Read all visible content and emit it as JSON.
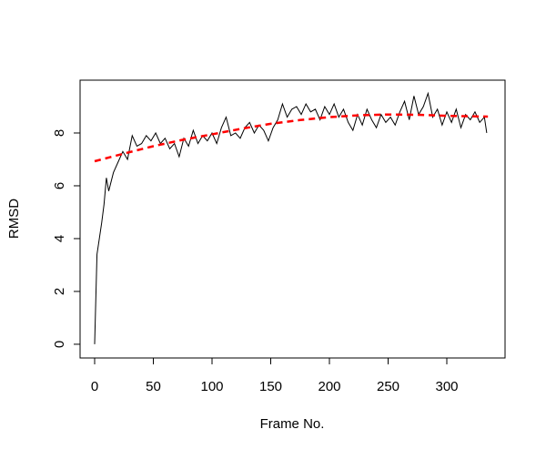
{
  "chart_data": {
    "type": "line",
    "xlabel": "Frame No.",
    "ylabel": "RMSD",
    "xlim": [
      -12.4,
      349.6
    ],
    "ylim": [
      -0.52,
      10.0
    ],
    "xticks": [
      0,
      50,
      100,
      150,
      200,
      250,
      300
    ],
    "yticks": [
      0,
      2,
      4,
      6,
      8
    ],
    "series": [
      {
        "color": "#000000",
        "dashed": false,
        "x": [
          0,
          2,
          4,
          6,
          8,
          10,
          12,
          16,
          20,
          24,
          28,
          32,
          36,
          40,
          44,
          48,
          52,
          56,
          60,
          64,
          68,
          72,
          76,
          80,
          84,
          88,
          92,
          96,
          100,
          104,
          108,
          112,
          116,
          120,
          124,
          128,
          132,
          136,
          140,
          144,
          148,
          152,
          156,
          160,
          164,
          168,
          172,
          176,
          180,
          184,
          188,
          192,
          196,
          200,
          204,
          208,
          212,
          216,
          220,
          224,
          228,
          232,
          236,
          240,
          244,
          248,
          252,
          256,
          260,
          264,
          268,
          272,
          276,
          280,
          284,
          288,
          292,
          296,
          300,
          304,
          308,
          312,
          316,
          320,
          324,
          328,
          332,
          334
        ],
        "values": [
          0,
          3.4,
          4.0,
          4.6,
          5.3,
          6.3,
          5.8,
          6.5,
          6.9,
          7.3,
          7.0,
          7.9,
          7.5,
          7.6,
          7.9,
          7.7,
          8.0,
          7.6,
          7.8,
          7.4,
          7.6,
          7.1,
          7.8,
          7.5,
          8.1,
          7.6,
          7.9,
          7.7,
          8.0,
          7.6,
          8.2,
          8.6,
          7.9,
          8.0,
          7.8,
          8.2,
          8.4,
          8.0,
          8.3,
          8.1,
          7.7,
          8.2,
          8.5,
          9.1,
          8.6,
          8.9,
          9.0,
          8.7,
          9.1,
          8.8,
          8.9,
          8.5,
          9.0,
          8.7,
          9.1,
          8.6,
          8.9,
          8.4,
          8.1,
          8.7,
          8.3,
          8.9,
          8.5,
          8.2,
          8.7,
          8.4,
          8.6,
          8.3,
          8.8,
          9.2,
          8.5,
          9.4,
          8.7,
          9.0,
          9.5,
          8.6,
          8.9,
          8.3,
          8.8,
          8.4,
          8.9,
          8.2,
          8.7,
          8.5,
          8.8,
          8.4,
          8.6,
          8.0
        ]
      },
      {
        "color": "#ff0000",
        "dashed": true,
        "x": [
          0,
          25,
          50,
          75,
          100,
          125,
          150,
          175,
          200,
          225,
          250,
          275,
          300,
          335
        ],
        "values": [
          6.93,
          7.22,
          7.5,
          7.74,
          7.95,
          8.16,
          8.35,
          8.49,
          8.6,
          8.67,
          8.7,
          8.69,
          8.65,
          8.62
        ]
      }
    ]
  }
}
